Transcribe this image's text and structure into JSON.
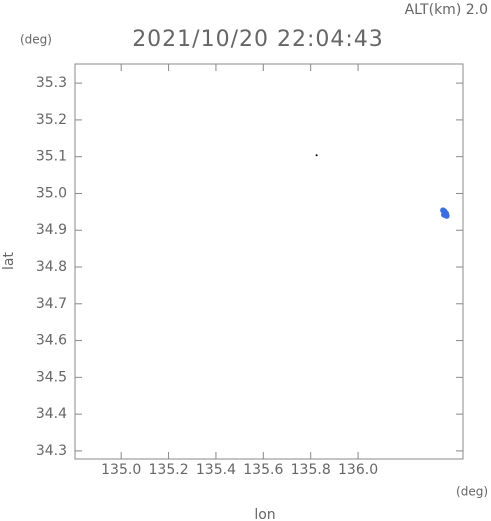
{
  "chart_data": {
    "type": "scatter",
    "title": "2021/10/20 22:04:43",
    "altitude_label": "ALT(km) 2.0",
    "y_unit": "(deg)",
    "x_unit": "(deg)",
    "xlabel": "lon",
    "ylabel": "lat",
    "xlim": [
      134.805,
      136.443
    ],
    "ylim": [
      34.278,
      35.352
    ],
    "xticks": [
      {
        "value": 135.0,
        "label": "135.0"
      },
      135.2,
      135.4,
      135.6,
      135.8,
      {
        "value": 136.0,
        "label": "136.0"
      }
    ],
    "yticks": [
      34.3,
      34.4,
      34.5,
      34.6,
      34.7,
      34.8,
      34.9,
      {
        "value": 35.0,
        "label": "35.0"
      },
      35.1,
      35.2,
      35.3
    ],
    "series": [
      {
        "color": "#000000",
        "size": 1,
        "x": [
          135.825
        ],
        "y": [
          35.104
        ]
      },
      {
        "color": "#3a6ee8",
        "size": 3,
        "x": [
          136.359,
          136.365,
          136.372,
          136.363,
          136.368,
          136.374
        ],
        "y": [
          34.954,
          34.951,
          34.945,
          34.942,
          34.947,
          34.939
        ]
      }
    ]
  }
}
